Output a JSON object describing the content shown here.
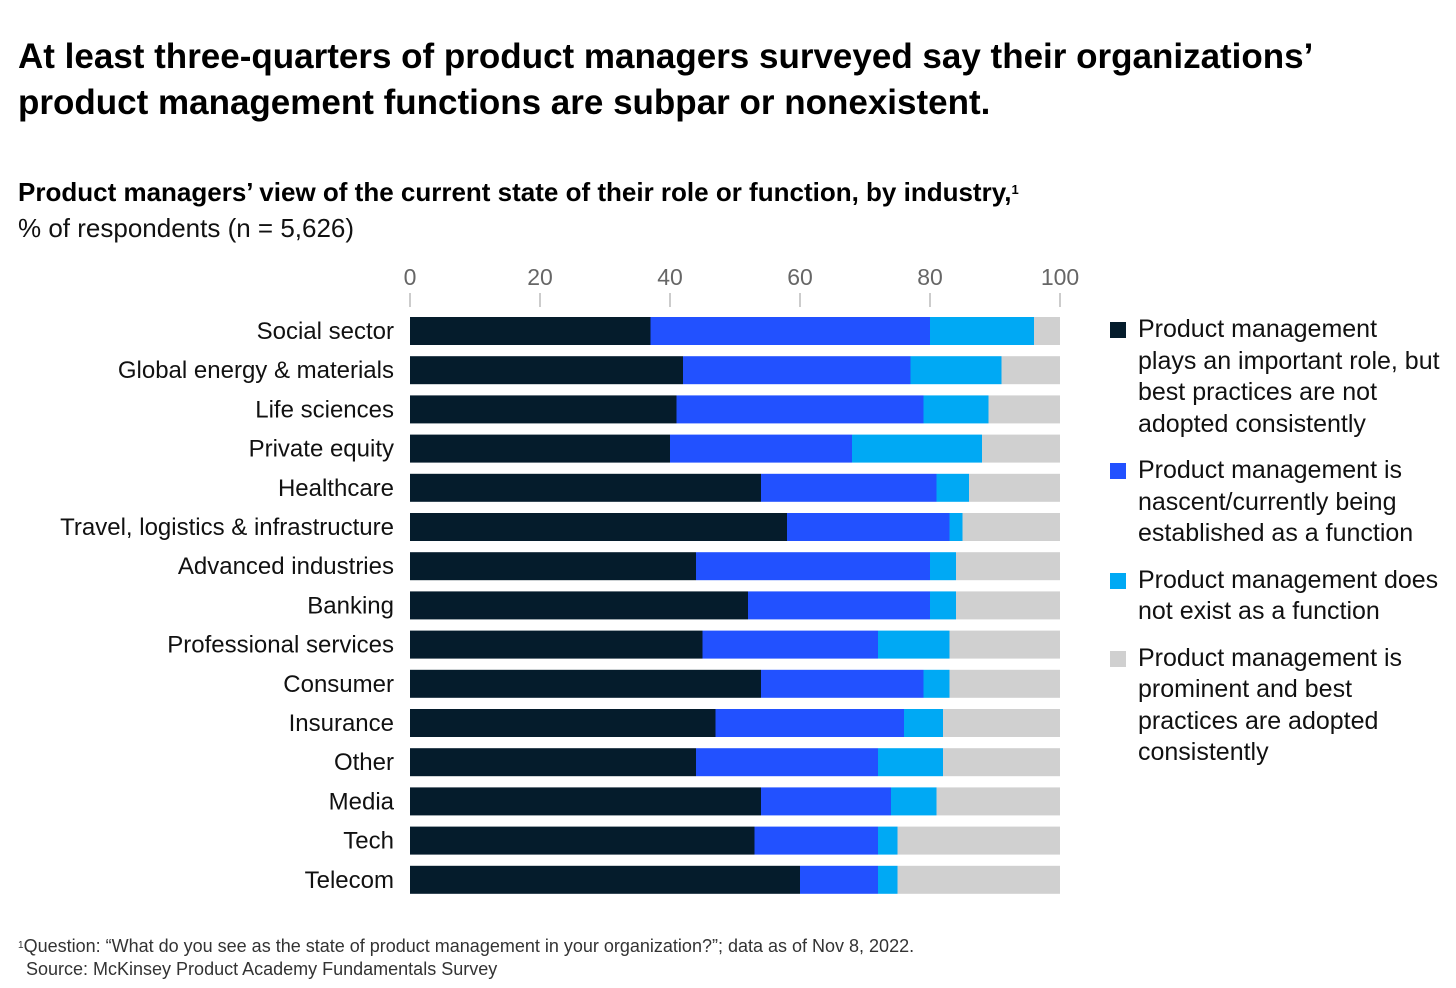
{
  "title": "At least three-quarters of product managers surveyed say their organizations’ product management functions are subpar or nonexistent.",
  "subtitle": "Product managers’ view of the current state of their role or function, by industry,",
  "subtitle_footnote_marker": "1",
  "unit_label": "% of respondents (n = 5,626)",
  "footnote_marker": "1",
  "footnote": "Question: “What do you see as the state of product management in your organization?”; data as of Nov 8, 2022.",
  "source": "Source: McKinsey Product Academy Fundamentals Survey",
  "chart_data": {
    "type": "bar",
    "orientation": "horizontal",
    "stacked": true,
    "xlim": [
      0,
      100
    ],
    "xticks": [
      0,
      20,
      40,
      60,
      80,
      100
    ],
    "grid": false,
    "legend_position": "right",
    "categories": [
      "Social sector",
      "Global energy & materials",
      "Life sciences",
      "Private equity",
      "Healthcare",
      "Travel, logistics & infrastructure",
      "Advanced industries",
      "Banking",
      "Professional services",
      "Consumer",
      "Insurance",
      "Other",
      "Media",
      "Tech",
      "Telecom"
    ],
    "series": [
      {
        "name": "Product management plays an important role, but best practices are not adopted consistently",
        "color": "#051c2c",
        "values": [
          37,
          42,
          41,
          40,
          54,
          58,
          44,
          52,
          45,
          54,
          47,
          44,
          54,
          53,
          60
        ]
      },
      {
        "name": "Product management is nascent/currently being established as a function",
        "color": "#2251ff",
        "values": [
          43,
          35,
          38,
          28,
          27,
          25,
          36,
          28,
          27,
          25,
          29,
          28,
          20,
          19,
          12
        ]
      },
      {
        "name": "Product management does not exist as a function",
        "color": "#00a9f4",
        "values": [
          16,
          14,
          10,
          20,
          5,
          2,
          4,
          4,
          11,
          4,
          6,
          10,
          7,
          3,
          3
        ]
      },
      {
        "name": "Product management is prominent and best practices are adopted consistently",
        "color": "#d0d0d0",
        "values": [
          4,
          9,
          11,
          12,
          14,
          15,
          16,
          16,
          17,
          17,
          18,
          18,
          19,
          25,
          25
        ]
      }
    ]
  }
}
